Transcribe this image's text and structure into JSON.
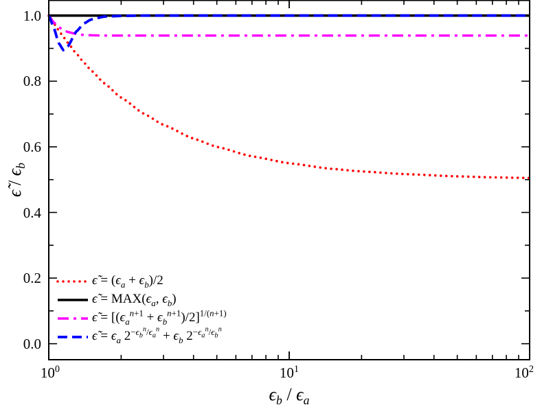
{
  "chart_data": {
    "type": "line",
    "xlabel": "ϵ_b / ϵ_a",
    "ylabel": "ϵ̃ / ϵ_b",
    "xscale": "log",
    "xlim": [
      1,
      100
    ],
    "ylim": [
      -0.05,
      1.05
    ],
    "grid": false,
    "legend_position": "bottom-left",
    "x_ticks": [
      {
        "value": 1,
        "label": "10^0"
      },
      {
        "value": 10,
        "label": "10^1"
      },
      {
        "value": 100,
        "label": "10^2"
      }
    ],
    "y_ticks": [
      {
        "value": 0.0,
        "label": "0.0"
      },
      {
        "value": 0.2,
        "label": "0.2"
      },
      {
        "value": 0.4,
        "label": "0.4"
      },
      {
        "value": 0.6,
        "label": "0.6"
      },
      {
        "value": 0.8,
        "label": "0.8"
      },
      {
        "value": 1.0,
        "label": "1.0"
      }
    ],
    "series": [
      {
        "name": "ϵ̃ = (ϵ_a + ϵ_b)/2",
        "color": "#ff0000",
        "style": "dotted",
        "x": [
          1,
          1.05,
          1.1,
          1.15,
          1.2,
          1.3,
          1.4,
          1.5,
          1.7,
          2,
          2.5,
          3,
          4,
          5,
          7,
          10,
          15,
          20,
          30,
          50,
          70,
          100
        ],
        "y": [
          1.0,
          0.976,
          0.955,
          0.935,
          0.917,
          0.885,
          0.857,
          0.833,
          0.794,
          0.75,
          0.7,
          0.667,
          0.625,
          0.6,
          0.571,
          0.55,
          0.533,
          0.525,
          0.517,
          0.51,
          0.507,
          0.505
        ]
      },
      {
        "name": "ϵ̃ = MAX(ϵ_a, ϵ_b)",
        "color": "#000000",
        "style": "solid",
        "x": [
          1,
          100
        ],
        "y": [
          1.0,
          1.0
        ]
      },
      {
        "name": "ϵ̃ = [(ϵ_a^{n+1} + ϵ_b^{n+1})/2]^{1/(n+1)}",
        "color": "#ff00ff",
        "style": "dashdot",
        "x": [
          1,
          1.05,
          1.1,
          1.15,
          1.2,
          1.3,
          1.4,
          1.5,
          1.7,
          2,
          3,
          10,
          100
        ],
        "y": [
          1.0,
          0.979,
          0.965,
          0.956,
          0.95,
          0.944,
          0.941,
          0.94,
          0.939,
          0.939,
          0.939,
          0.939,
          0.939
        ]
      },
      {
        "name": "ϵ̃ = ϵ_a 2^{−ϵ_b^n/ϵ_a^n} + ϵ_b 2^{−ϵ_a^n/ϵ_b^n}",
        "color": "#0000ff",
        "style": "dashed",
        "x": [
          1,
          1.05,
          1.1,
          1.15,
          1.2,
          1.3,
          1.4,
          1.5,
          1.7,
          2,
          2.5,
          3,
          10,
          100
        ],
        "y": [
          1.0,
          0.962,
          0.916,
          0.895,
          0.906,
          0.951,
          0.976,
          0.988,
          0.997,
          0.999,
          1.0,
          1.0,
          1.0,
          1.0
        ]
      }
    ]
  }
}
